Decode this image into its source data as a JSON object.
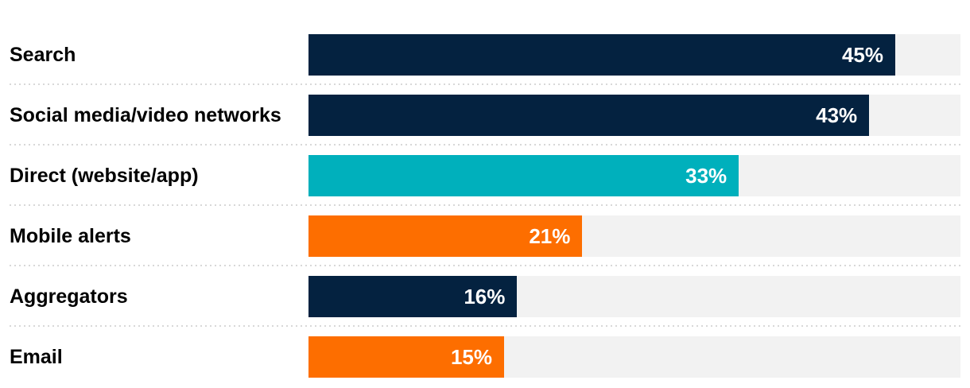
{
  "chart_data": {
    "type": "bar",
    "orientation": "horizontal",
    "categories": [
      "Search",
      "Social media/video networks",
      "Direct (website/app)",
      "Mobile alerts",
      "Aggregators",
      "Email"
    ],
    "values": [
      45,
      43,
      33,
      21,
      16,
      15
    ],
    "value_labels": [
      "45%",
      "43%",
      "33%",
      "21%",
      "16%",
      "15%"
    ],
    "bar_colors": [
      "#042240",
      "#042240",
      "#00b0bc",
      "#fd6e00",
      "#042240",
      "#fd6e00"
    ],
    "xlim": [
      0,
      50
    ],
    "grid": false,
    "legend": false,
    "value_label_position": "inside-end",
    "value_text_color": "#ffffff",
    "label_text_color": "#000000",
    "track_color": "#f2f2f2",
    "separator_color": "#d8d8d8",
    "background_color": "#ffffff"
  }
}
